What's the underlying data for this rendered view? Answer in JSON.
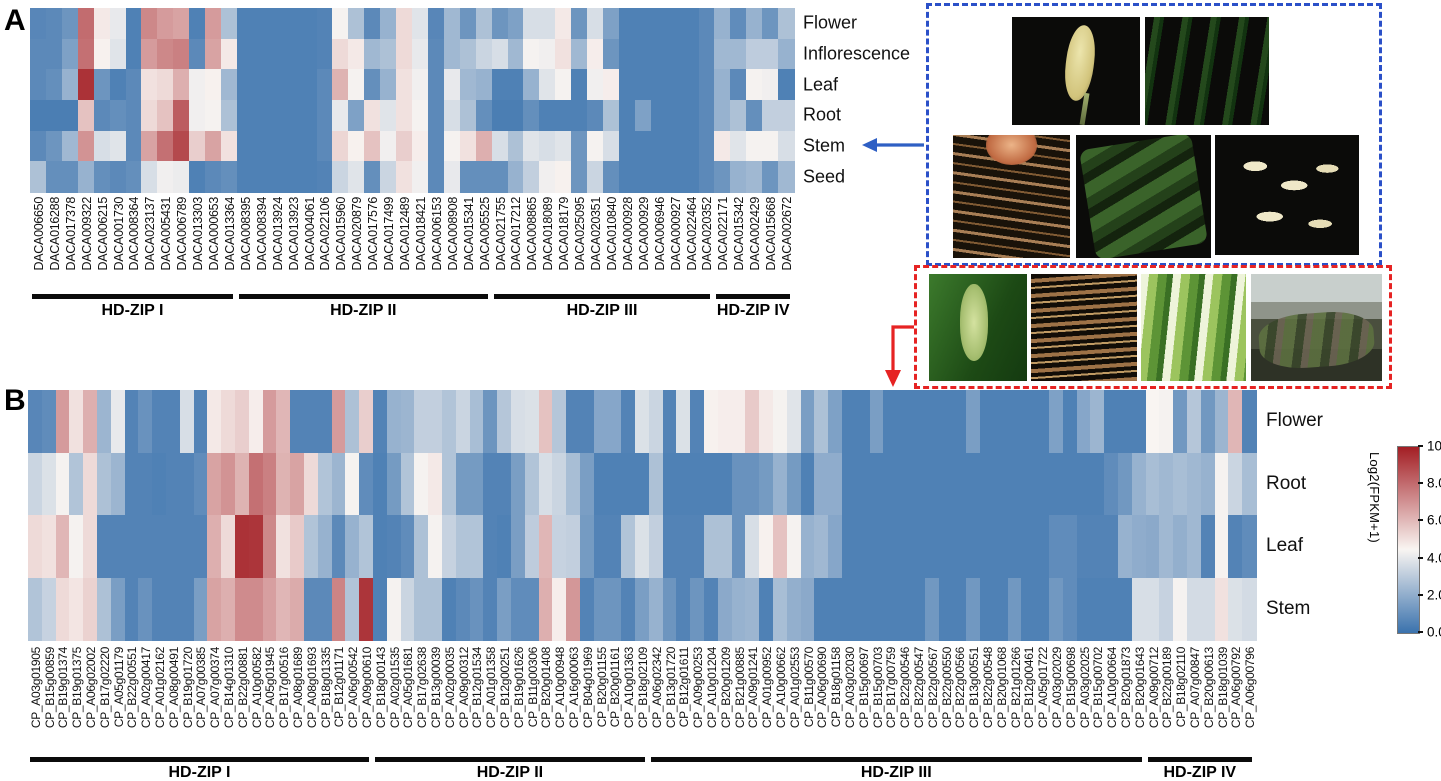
{
  "figure": {
    "panel_a_letter": "A",
    "panel_b_letter": "B"
  },
  "colorbar": {
    "title": "Log2(FPKM+1)",
    "ticks": [
      "10.00",
      "8.00",
      "6.00",
      "4.00",
      "2.00",
      "0.00"
    ],
    "min": 0,
    "max": 10
  },
  "colors": {
    "heat_low": "#3a72ad",
    "heat_mid": "#f9f5f2",
    "heat_high": "#a31e24",
    "blue_box_border": "#2b50c8",
    "red_box_border": "#e62323",
    "blue_arrow": "#2e5fc4",
    "red_arrow": "#e62323",
    "group_bar": "#0b0b0b"
  },
  "chart_data": [
    {
      "type": "heatmap",
      "panel": "A",
      "legend": "Log2(FPKM+1)",
      "value_range": [
        0,
        10
      ],
      "rows": [
        "Flower",
        "Inflorescence",
        "Leaf",
        "Root",
        "Stem",
        "Seed"
      ],
      "groups": [
        {
          "label": "HD-ZIP I",
          "count": 13
        },
        {
          "label": "HD-ZIP II",
          "count": 16
        },
        {
          "label": "HD-ZIP III",
          "count": 14
        },
        {
          "label": "HD-ZIP IV",
          "count": 5
        }
      ],
      "columns": [
        "DACA006650",
        "DACA016288",
        "DACA017378",
        "DACA009322",
        "DACA006215",
        "DACA001730",
        "DACA008364",
        "DACA023137",
        "DACA005431",
        "DACA006789",
        "DACA013303",
        "DACA000653",
        "DACA013364",
        "DACA008395",
        "DACA008394",
        "DACA013924",
        "DACA013923",
        "DACA004061",
        "DACA022106",
        "DACA015960",
        "DACA020879",
        "DACA017576",
        "DACA017499",
        "DACA012489",
        "DACA018421",
        "DACA006153",
        "DACA008908",
        "DACA015341",
        "DACA005525",
        "DACA021755",
        "DACA017212",
        "DACA008865",
        "DACA018089",
        "DACA018179",
        "DACA025095",
        "DACA020351",
        "DACA010840",
        "DACA000928",
        "DACA000929",
        "DACA006946",
        "DACA000927",
        "DACA022464",
        "DACA020352",
        "DACA022171",
        "DACA015342",
        "DACA002429",
        "DACA015668",
        "DACA002672"
      ],
      "values": [
        [
          0.7,
          0.8,
          1.2,
          8.0,
          4.8,
          4.1,
          0.5,
          7.3,
          6.8,
          6.6,
          0.5,
          6.8,
          2.7,
          0.5,
          0.5,
          0.5,
          0.5,
          0.5,
          0.6,
          4.4,
          2.7,
          0.8,
          2.2,
          5.2,
          3.9,
          0.7,
          2.4,
          1.2,
          2.7,
          1.2,
          1.6,
          3.7,
          3.7,
          4.8,
          1.2,
          3.7,
          1.6,
          0.5,
          0.5,
          0.5,
          0.5,
          0.5,
          0.8,
          2.2,
          0.9,
          2.2,
          1.2,
          2.7
        ],
        [
          0.8,
          0.8,
          1.6,
          7.9,
          4.6,
          3.9,
          0.5,
          6.8,
          7.3,
          7.5,
          0.8,
          6.6,
          4.8,
          0.5,
          0.5,
          0.5,
          0.5,
          0.5,
          0.6,
          5.2,
          4.8,
          2.4,
          2.7,
          5.2,
          4.1,
          0.8,
          2.4,
          2.7,
          3.4,
          3.7,
          2.4,
          4.4,
          4.3,
          5.0,
          2.4,
          4.7,
          1.2,
          0.5,
          0.5,
          0.5,
          0.5,
          0.5,
          0.8,
          2.4,
          2.4,
          3.1,
          3.1,
          2.2
        ],
        [
          0.8,
          1.0,
          2.2,
          9.5,
          1.2,
          0.5,
          0.8,
          5.0,
          5.2,
          6.3,
          4.3,
          4.6,
          2.4,
          0.5,
          0.5,
          0.5,
          0.5,
          0.5,
          0.8,
          6.2,
          4.4,
          1.0,
          2.2,
          5.0,
          4.3,
          0.8,
          4.1,
          2.4,
          2.2,
          0.5,
          0.5,
          2.2,
          3.9,
          4.4,
          0.5,
          4.3,
          4.7,
          0.5,
          0.5,
          0.5,
          0.5,
          0.5,
          0.8,
          2.2,
          0.8,
          4.4,
          4.3,
          0.5
        ],
        [
          0.4,
          0.4,
          0.4,
          5.8,
          0.8,
          1.0,
          0.8,
          5.2,
          5.8,
          8.4,
          4.3,
          4.4,
          2.7,
          0.5,
          0.5,
          0.5,
          0.5,
          0.5,
          0.8,
          4.1,
          1.6,
          5.0,
          3.9,
          5.0,
          4.4,
          0.8,
          3.7,
          2.7,
          1.0,
          0.4,
          0.4,
          1.0,
          0.5,
          0.5,
          0.5,
          0.8,
          2.7,
          0.5,
          1.6,
          0.5,
          0.5,
          0.5,
          0.8,
          2.2,
          2.7,
          1.0,
          3.2,
          3.2
        ],
        [
          0.8,
          1.2,
          2.4,
          7.0,
          3.7,
          3.9,
          0.8,
          6.6,
          7.9,
          8.9,
          5.5,
          6.6,
          5.0,
          0.5,
          0.5,
          0.5,
          0.5,
          0.5,
          0.8,
          5.3,
          4.6,
          5.8,
          4.3,
          5.5,
          4.7,
          0.8,
          4.4,
          5.0,
          6.3,
          3.7,
          2.7,
          3.9,
          3.7,
          3.9,
          1.2,
          4.4,
          3.7,
          0.5,
          0.5,
          0.5,
          0.5,
          0.5,
          0.8,
          4.8,
          3.9,
          4.4,
          4.4,
          3.7
        ],
        [
          2.7,
          1.0,
          1.0,
          2.2,
          1.0,
          0.8,
          1.0,
          3.7,
          4.3,
          4.2,
          0.5,
          0.8,
          1.0,
          0.5,
          0.5,
          0.5,
          0.5,
          0.5,
          0.6,
          3.4,
          3.9,
          1.0,
          3.4,
          5.0,
          4.3,
          0.8,
          4.1,
          1.0,
          1.0,
          1.0,
          2.2,
          3.2,
          4.3,
          4.6,
          1.2,
          3.4,
          1.0,
          0.5,
          0.5,
          0.5,
          0.5,
          0.5,
          0.8,
          1.2,
          2.2,
          2.4,
          1.2,
          2.4
        ]
      ]
    },
    {
      "type": "heatmap",
      "panel": "B",
      "legend": "Log2(FPKM+1)",
      "value_range": [
        0,
        10
      ],
      "rows": [
        "Flower",
        "Root",
        "Leaf",
        "Stem"
      ],
      "groups": [
        {
          "label": "HD-ZIP I",
          "count": 25
        },
        {
          "label": "HD-ZIP II",
          "count": 20
        },
        {
          "label": "HD-ZIP III",
          "count": 36
        },
        {
          "label": "HD-ZIP IV",
          "count": 8
        }
      ],
      "columns": [
        "CP_A03g01905",
        "CP_B15g00859",
        "CP_B19g01374",
        "CP_B19g01375",
        "CP_A06g02002",
        "CP_B17g02220",
        "CP_A05g01179",
        "CP_B22g00551",
        "CP_A02g00417",
        "CP_A01g02162",
        "CP_A08g00491",
        "CP_B19g01720",
        "CP_A07g00385",
        "CP_A07g00374",
        "CP_B14g01310",
        "CP_B22g00881",
        "CP_A10g00582",
        "CP_A05g01945",
        "CP_B17g00516",
        "CP_A08g01689",
        "CP_A08g01693",
        "CP_B18g01335",
        "CP_B12g01171",
        "CP_A06g00542",
        "CP_A09g00610",
        "CP_B18g00143",
        "CP_A02g01535",
        "CP_A05g01681",
        "CP_B17g02638",
        "CP_B13g00039",
        "CP_A02g00035",
        "CP_A09g00312",
        "CP_B12g01534",
        "CP_A01g01358",
        "CP_B12g00251",
        "CP_B19g01626",
        "CP_B11g00306",
        "CP_B20g01408",
        "CP_A10g00948",
        "CP_A16g00063",
        "CP_B04g01969",
        "CP_B20g01155",
        "CP_B20g01161",
        "CP_A10g01363",
        "CP_B18g02109",
        "CP_A06g02342",
        "CP_B13g01720",
        "CP_B12g01611",
        "CP_A09g00253",
        "CP_A10g01204",
        "CP_B20g01209",
        "CP_B21g00885",
        "CP_A09g01241",
        "CP_A01g00952",
        "CP_A10g00662",
        "CP_A01g02553",
        "CP_B11g00570",
        "CP_A06g00690",
        "CP_B18g01158",
        "CP_A03g02030",
        "CP_B15g00697",
        "CP_B15g00703",
        "CP_B17g00759",
        "CP_B22g00546",
        "CP_B22g00547",
        "CP_B22g00567",
        "CP_B22g00550",
        "CP_B22g00566",
        "CP_B13g00551",
        "CP_B22g00548",
        "CP_B20g01068",
        "CP_B21g01266",
        "CP_B12g00461",
        "CP_A05g01722",
        "CP_A03g02029",
        "CP_B15g00698",
        "CP_A03g02025",
        "CP_B15g00702",
        "CP_A10g00664",
        "CP_B20g01873",
        "CP_B20g01643",
        "CP_A09g00712",
        "CP_B22g00189",
        "CP_B18g02110",
        "CP_A07g00847",
        "CP_B20g00613",
        "CP_B18g01039",
        "CP_A06g00792",
        "CP_A06g00796"
      ],
      "values": [
        [
          0.7,
          0.9,
          6.8,
          5.0,
          6.3,
          2.3,
          4.1,
          0.6,
          1.1,
          0.6,
          0.6,
          3.7,
          0.6,
          4.8,
          5.2,
          5.5,
          4.7,
          6.8,
          6.1,
          0.6,
          0.6,
          0.6,
          6.8,
          2.7,
          5.5,
          0.6,
          2.2,
          2.3,
          3.2,
          3.2,
          2.8,
          3.4,
          2.6,
          1.2,
          2.9,
          3.7,
          3.8,
          5.8,
          2.9,
          0.6,
          0.6,
          1.8,
          1.8,
          0.6,
          3.8,
          3.4,
          0.6,
          3.8,
          0.6,
          4.6,
          4.7,
          4.7,
          5.6,
          4.8,
          4.4,
          3.9,
          1.5,
          2.7,
          1.6,
          0.5,
          0.5,
          1.5,
          0.5,
          0.5,
          0.5,
          0.5,
          0.5,
          0.5,
          1.5,
          0.5,
          0.5,
          0.5,
          0.5,
          0.5,
          1.6,
          0.5,
          1.8,
          2.3,
          0.5,
          0.5,
          0.5,
          4.5,
          4.4,
          1.3,
          2.9,
          1.3,
          2.3,
          6.1,
          0.6
        ],
        [
          3.4,
          3.8,
          4.4,
          2.8,
          5.2,
          2.7,
          2.3,
          0.6,
          0.6,
          0.5,
          0.6,
          0.6,
          0.9,
          6.6,
          7.0,
          6.2,
          7.9,
          7.5,
          6.2,
          6.6,
          5.2,
          2.8,
          2.3,
          4.4,
          0.9,
          0.5,
          1.4,
          2.8,
          4.4,
          4.8,
          2.8,
          1.4,
          1.4,
          0.6,
          0.6,
          1.5,
          2.8,
          3.7,
          3.4,
          2.6,
          1.5,
          0.5,
          0.5,
          0.5,
          0.5,
          2.7,
          0.5,
          0.5,
          0.5,
          0.5,
          0.5,
          1.1,
          1.1,
          1.4,
          2.2,
          1.4,
          0.5,
          2.0,
          2.0,
          0.5,
          0.5,
          0.5,
          0.5,
          0.5,
          0.5,
          0.5,
          0.5,
          0.5,
          0.5,
          0.5,
          0.5,
          0.5,
          0.5,
          0.5,
          0.5,
          0.5,
          0.5,
          0.5,
          0.9,
          1.3,
          2.2,
          2.6,
          2.4,
          2.6,
          2.4,
          2.2,
          4.4,
          3.4,
          2.6
        ],
        [
          5.2,
          5.0,
          6.1,
          4.4,
          5.2,
          0.6,
          0.6,
          0.6,
          0.6,
          0.6,
          0.6,
          0.6,
          0.6,
          6.3,
          5.2,
          9.5,
          9.4,
          7.3,
          5.0,
          5.6,
          2.8,
          2.2,
          0.8,
          2.2,
          2.8,
          0.5,
          0.6,
          0.9,
          2.7,
          4.4,
          3.3,
          2.8,
          2.8,
          0.6,
          0.5,
          1.5,
          3.1,
          6.1,
          3.3,
          3.2,
          1.4,
          0.6,
          0.6,
          2.8,
          3.8,
          3.2,
          0.6,
          0.6,
          0.6,
          2.7,
          2.7,
          1.1,
          3.7,
          4.6,
          5.8,
          4.4,
          2.2,
          2.4,
          1.8,
          0.5,
          0.5,
          0.5,
          0.5,
          0.5,
          0.5,
          0.5,
          0.5,
          0.5,
          0.5,
          0.5,
          0.5,
          0.5,
          0.5,
          0.5,
          0.9,
          0.9,
          0.6,
          0.6,
          0.6,
          2.2,
          2.0,
          1.9,
          2.4,
          2.1,
          2.4,
          0.6,
          4.4,
          0.6,
          0.9
        ],
        [
          2.8,
          3.3,
          5.2,
          4.9,
          5.4,
          2.7,
          1.5,
          0.6,
          1.1,
          0.6,
          0.6,
          0.6,
          1.5,
          6.6,
          6.3,
          7.2,
          7.2,
          6.7,
          6.1,
          6.4,
          0.8,
          0.8,
          7.4,
          2.8,
          9.4,
          0.5,
          4.4,
          3.4,
          2.7,
          2.7,
          0.5,
          0.8,
          1.1,
          0.6,
          1.5,
          0.9,
          0.9,
          6.3,
          4.7,
          6.9,
          0.6,
          1.2,
          1.2,
          0.6,
          1.5,
          2.2,
          1.2,
          0.6,
          1.2,
          0.6,
          1.9,
          2.2,
          2.3,
          0.5,
          2.6,
          2.1,
          1.9,
          0.5,
          0.5,
          0.5,
          0.5,
          0.5,
          0.5,
          0.5,
          0.5,
          1.3,
          0.5,
          0.5,
          1.3,
          0.5,
          0.5,
          1.3,
          0.5,
          0.5,
          1.3,
          0.9,
          0.5,
          0.5,
          0.5,
          0.5,
          3.7,
          3.7,
          3.3,
          4.4,
          3.6,
          3.6,
          5.0,
          3.8,
          3.6
        ]
      ]
    }
  ],
  "photos": {
    "blue_group": {
      "items": [
        {
          "name": "flower-spike-photo",
          "kind": "spike"
        },
        {
          "name": "inflorescence-leaves-photo",
          "kind": "leaves-dark"
        },
        {
          "name": "root-photo",
          "kind": "roots"
        },
        {
          "name": "stem-photo",
          "kind": "stem-green"
        },
        {
          "name": "seed-photo",
          "kind": "seeds"
        }
      ]
    },
    "red_group": {
      "items": [
        {
          "name": "flower-spadix-photo",
          "kind": "spadix"
        },
        {
          "name": "root-photo",
          "kind": "roots2"
        },
        {
          "name": "leaf-photo",
          "kind": "leaves-bright"
        },
        {
          "name": "stem-rhizome-photo",
          "kind": "rhizome-water"
        }
      ]
    }
  }
}
